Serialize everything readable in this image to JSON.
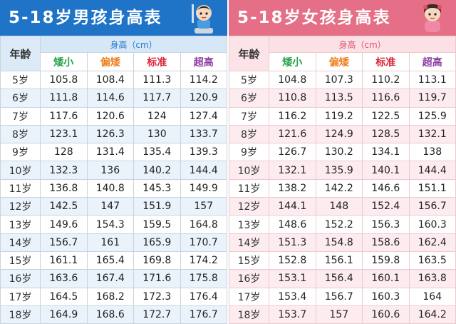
{
  "boys": {
    "title": "5-18岁男孩身高表",
    "age_header": "年龄",
    "unit_header": "身高（cm）",
    "categories": [
      "矮小",
      "偏矮",
      "标准",
      "超高"
    ],
    "rows": [
      [
        "5岁",
        "105.8",
        "108.4",
        "111.3",
        "114.2"
      ],
      [
        "6岁",
        "111.8",
        "114.6",
        "117.7",
        "120.9"
      ],
      [
        "7岁",
        "117.6",
        "120.6",
        "124",
        "127.4"
      ],
      [
        "8岁",
        "123.1",
        "126.3",
        "130",
        "133.7"
      ],
      [
        "9岁",
        "128",
        "131.4",
        "135.4",
        "139.3"
      ],
      [
        "10岁",
        "132.3",
        "136",
        "140.2",
        "144.4"
      ],
      [
        "11岁",
        "136.8",
        "140.8",
        "145.3",
        "149.9"
      ],
      [
        "12岁",
        "142.5",
        "147",
        "151.9",
        "157"
      ],
      [
        "13岁",
        "149.6",
        "154.3",
        "159.5",
        "164.8"
      ],
      [
        "14岁",
        "156.7",
        "161",
        "165.9",
        "170.7"
      ],
      [
        "15岁",
        "161.1",
        "165.4",
        "169.8",
        "174.2"
      ],
      [
        "16岁",
        "163.6",
        "167.4",
        "171.6",
        "175.8"
      ],
      [
        "17岁",
        "164.5",
        "168.2",
        "172.3",
        "176.4"
      ],
      [
        "18岁",
        "164.9",
        "168.6",
        "172.7",
        "176.7"
      ]
    ]
  },
  "girls": {
    "title": "5-18岁女孩身高表",
    "age_header": "年龄",
    "unit_header": "身高（cm）",
    "categories": [
      "矮小",
      "偏矮",
      "标准",
      "超高"
    ],
    "rows": [
      [
        "5岁",
        "104.8",
        "107.3",
        "110.2",
        "113.1"
      ],
      [
        "6岁",
        "110.8",
        "113.5",
        "116.6",
        "119.7"
      ],
      [
        "7岁",
        "116.2",
        "119.2",
        "122.5",
        "125.9"
      ],
      [
        "8岁",
        "121.6",
        "124.9",
        "128.5",
        "132.1"
      ],
      [
        "9岁",
        "126.7",
        "130.2",
        "134.1",
        "138"
      ],
      [
        "10岁",
        "132.1",
        "135.9",
        "140.1",
        "144.4"
      ],
      [
        "11岁",
        "138.2",
        "142.2",
        "146.6",
        "151.1"
      ],
      [
        "12岁",
        "144.1",
        "148",
        "152.4",
        "156.7"
      ],
      [
        "13岁",
        "148.6",
        "152.2",
        "156.3",
        "160.3"
      ],
      [
        "14岁",
        "151.3",
        "154.8",
        "158.6",
        "162.4"
      ],
      [
        "15岁",
        "152.8",
        "156.1",
        "159.8",
        "163.5"
      ],
      [
        "16岁",
        "153.1",
        "156.4",
        "160.1",
        "163.8"
      ],
      [
        "17岁",
        "153.4",
        "156.7",
        "160.3",
        "164"
      ],
      [
        "18岁",
        "153.7",
        "157",
        "160.6",
        "164.2"
      ]
    ]
  },
  "icons": {
    "boy": "boy-cartoon-icon",
    "girl": "girl-cartoon-icon"
  },
  "colors": {
    "boys_accent": "#1f74c8",
    "girls_accent": "#e46f86"
  }
}
